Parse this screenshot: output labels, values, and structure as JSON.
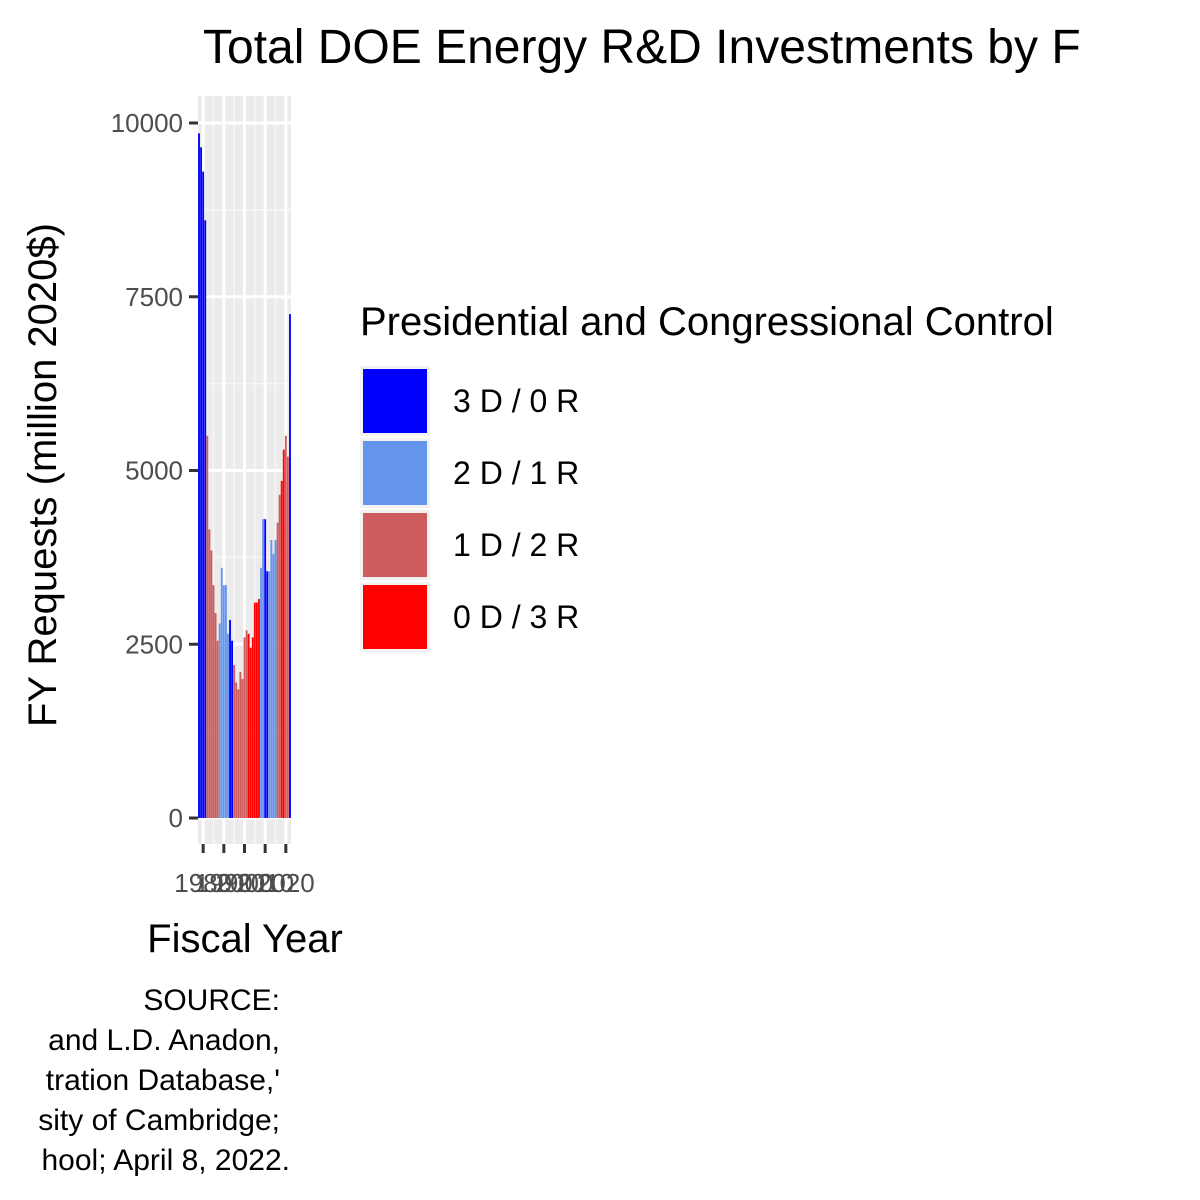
{
  "chart_data": {
    "type": "bar",
    "title": "Total DOE Energy R&D Investments by F",
    "xlabel": "Fiscal Year",
    "ylabel": "FY Requests (million 2020$)",
    "x_tick_labels": [
      "1980",
      "1990",
      "2000",
      "2010",
      "2020"
    ],
    "y_ticks": [
      0,
      2500,
      5000,
      7500,
      10000
    ],
    "y_tick_labels": [
      "0",
      "2500",
      "5000",
      "7500",
      "10000"
    ],
    "ylim": [
      0,
      10300
    ],
    "xlim": [
      1977.5,
      2022.5
    ],
    "grid": true,
    "legend": {
      "title": "Presidential and Congressional Control",
      "placement": "right",
      "items": [
        {
          "label": "3 D / 0 R",
          "color": "#0000ff"
        },
        {
          "label": "2 D / 1 R",
          "color": "#6495ed"
        },
        {
          "label": "1 D / 2 R",
          "color": "#cd5c5c"
        },
        {
          "label": "0 D / 3 R",
          "color": "#ff0000"
        }
      ]
    },
    "years": [
      1978,
      1979,
      1980,
      1981,
      1982,
      1983,
      1984,
      1985,
      1986,
      1987,
      1988,
      1989,
      1990,
      1991,
      1992,
      1993,
      1994,
      1995,
      1996,
      1997,
      1998,
      1999,
      2000,
      2001,
      2002,
      2003,
      2004,
      2005,
      2006,
      2007,
      2008,
      2009,
      2010,
      2011,
      2012,
      2013,
      2014,
      2015,
      2016,
      2017,
      2018,
      2019,
      2020,
      2021,
      2022
    ],
    "values": [
      9850,
      9650,
      9300,
      8600,
      5500,
      4150,
      3850,
      3350,
      2950,
      2550,
      2800,
      3600,
      3350,
      3350,
      2650,
      2850,
      2550,
      2200,
      1950,
      1850,
      2100,
      2000,
      2600,
      2700,
      2650,
      2450,
      2600,
      3100,
      3100,
      3150,
      3600,
      4300,
      4300,
      3550,
      3550,
      4000,
      3800,
      4000,
      4250,
      4650,
      4850,
      5300,
      5500,
      5200,
      7250
    ],
    "control": [
      "3 D / 0 R",
      "3 D / 0 R",
      "3 D / 0 R",
      "3 D / 0 R",
      "1 D / 2 R",
      "1 D / 2 R",
      "1 D / 2 R",
      "1 D / 2 R",
      "1 D / 2 R",
      "1 D / 2 R",
      "2 D / 1 R",
      "2 D / 1 R",
      "2 D / 1 R",
      "2 D / 1 R",
      "2 D / 1 R",
      "3 D / 0 R",
      "3 D / 0 R",
      "1 D / 2 R",
      "1 D / 2 R",
      "1 D / 2 R",
      "1 D / 2 R",
      "1 D / 2 R",
      "1 D / 2 R",
      "1 D / 2 R",
      "0 D / 3 R",
      "0 D / 3 R",
      "0 D / 3 R",
      "0 D / 3 R",
      "0 D / 3 R",
      "0 D / 3 R",
      "2 D / 1 R",
      "2 D / 1 R",
      "3 D / 0 R",
      "3 D / 0 R",
      "2 D / 1 R",
      "2 D / 1 R",
      "2 D / 1 R",
      "2 D / 1 R",
      "1 D / 2 R",
      "1 D / 2 R",
      "0 D / 3 R",
      "0 D / 3 R",
      "1 D / 2 R",
      "1 D / 2 R",
      "3 D / 0 R"
    ],
    "caption_lines": [
      "SOURCE:",
      "and L.D. Anadon,",
      "tration Database,'",
      "sity of Cambridge;",
      "hool; April 8, 2022."
    ]
  }
}
